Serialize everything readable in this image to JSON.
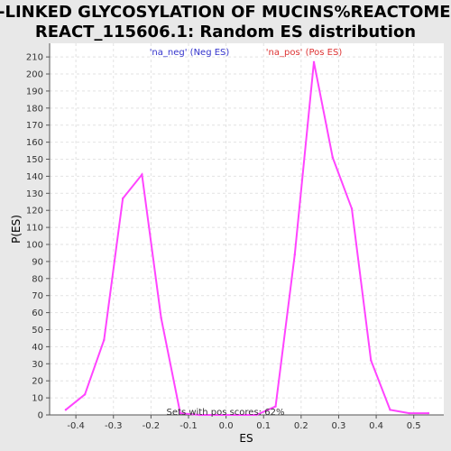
{
  "chart_data": {
    "type": "line",
    "title_lines": [
      "O-LINKED GLYCOSYLATION OF MUCINS%REACTOME%",
      "REACT_115606.1: Random ES distribution"
    ],
    "xlabel": "ES",
    "ylabel": "P(ES)",
    "xlim": [
      -0.47,
      0.58
    ],
    "ylim": [
      0,
      218
    ],
    "x_ticks": [
      -0.4,
      -0.3,
      -0.2,
      -0.1,
      0.0,
      0.1,
      0.2,
      0.3,
      0.4,
      0.5
    ],
    "x_tick_labels": [
      "-0.4",
      "-0.3",
      "-0.2",
      "-0.1",
      "0.0",
      "0.1",
      "0.2",
      "0.3",
      "0.4",
      "0.5"
    ],
    "y_ticks": [
      0,
      10,
      20,
      30,
      40,
      50,
      60,
      70,
      80,
      90,
      100,
      110,
      120,
      130,
      140,
      150,
      160,
      170,
      180,
      190,
      200,
      210
    ],
    "y_tick_labels": [
      "0",
      "10",
      "20",
      "30",
      "40",
      "50",
      "60",
      "70",
      "80",
      "90",
      "100",
      "110",
      "120",
      "130",
      "140",
      "150",
      "160",
      "170",
      "180",
      "190",
      "200",
      "210"
    ],
    "grid": true,
    "line_color": "#ff44ff",
    "series": [
      {
        "x": [
          -0.427,
          -0.376,
          -0.325,
          -0.275,
          -0.224,
          -0.173,
          -0.122,
          -0.071,
          0.03,
          0.081,
          0.132,
          0.183,
          0.234,
          0.284,
          0.335,
          0.386,
          0.437,
          0.488,
          0.539
        ],
        "y": [
          3,
          12,
          44,
          127,
          141,
          57,
          1,
          0,
          0,
          0,
          5,
          94,
          207,
          151,
          121,
          32,
          3,
          1,
          1
        ]
      }
    ],
    "legend": [
      {
        "label": "'na_neg' (Neg ES)",
        "color": "#3333cc"
      },
      {
        "label": "'na_pos' (Pos ES)",
        "color": "#dd3333"
      }
    ],
    "legend_placement": "top",
    "annotation": "Sets with pos scores: 62%"
  }
}
